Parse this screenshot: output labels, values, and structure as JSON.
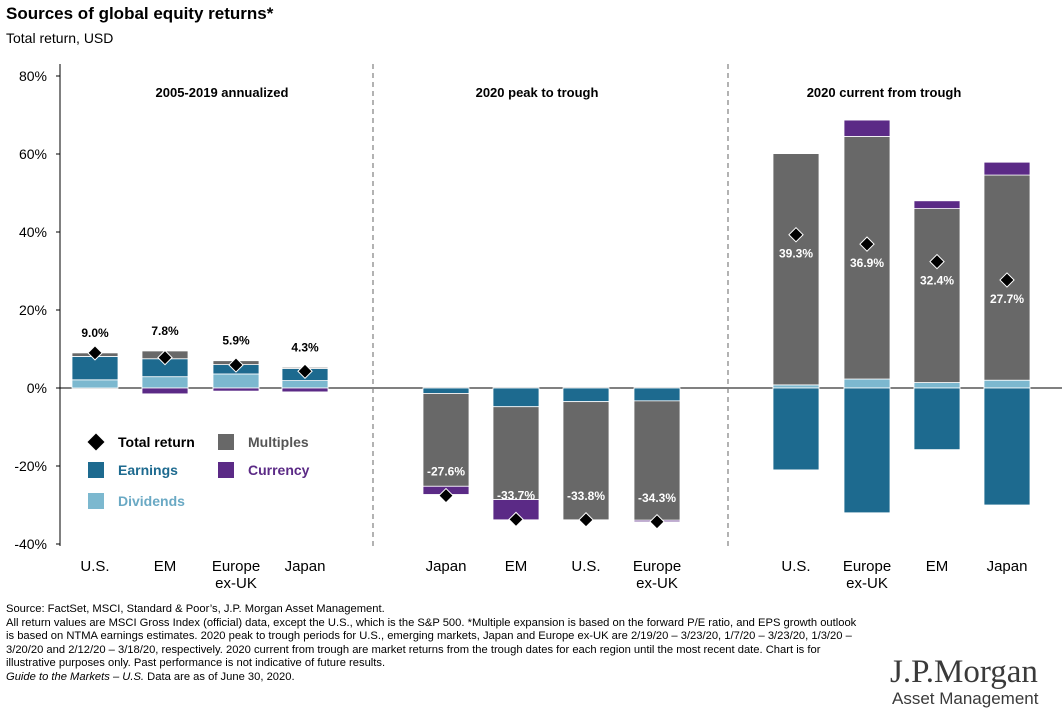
{
  "title": "Sources of global equity returns*",
  "subtitle": "Total return, USD",
  "colors": {
    "earnings": "#1d6a8f",
    "dividends": "#7cb8cf",
    "multiples": "#686868",
    "currency": "#5b2a86",
    "total_marker": "#000000",
    "divider": "#808080"
  },
  "chart_data": {
    "type": "bar",
    "stacked": true,
    "y_ticks": [
      "80%",
      "60%",
      "40%",
      "20%",
      "0%",
      "-20%",
      "-40%"
    ],
    "ylim": [
      -40,
      80
    ],
    "panels": [
      {
        "title": "2005-2019 annualized",
        "total_label_style": "above",
        "categories": [
          {
            "label": "U.S.",
            "total": 9.0,
            "total_label": "9.0%",
            "earnings": 6.0,
            "dividends": 2.1,
            "multiples": 0.9,
            "currency": 0.0
          },
          {
            "label": "EM",
            "total": 7.8,
            "total_label": "7.8%",
            "earnings": 4.6,
            "dividends": 2.9,
            "multiples": 2.0,
            "currency": -1.5
          },
          {
            "label": "Europe\nex-UK",
            "total": 5.9,
            "total_label": "5.9%",
            "earnings": 2.4,
            "dividends": 3.6,
            "multiples": 1.0,
            "currency": -0.8
          },
          {
            "label": "Japan",
            "total": 4.3,
            "total_label": "4.3%",
            "earnings": 3.1,
            "dividends": 1.9,
            "multiples": 0.3,
            "currency": -1.0
          }
        ]
      },
      {
        "title": "2020 peak to trough",
        "total_label_style": "inside",
        "categories": [
          {
            "label": "Japan",
            "total": -27.6,
            "total_label": "-27.6%",
            "earnings": -1.4,
            "dividends": 0.0,
            "multiples": -23.8,
            "currency": -2.1
          },
          {
            "label": "EM",
            "total": -33.7,
            "total_label": "-33.7%",
            "earnings": -4.8,
            "dividends": 0.0,
            "multiples": -23.8,
            "currency": -5.2
          },
          {
            "label": "U.S.",
            "total": -33.8,
            "total_label": "-33.8%",
            "earnings": -3.5,
            "dividends": 0.0,
            "multiples": -30.3,
            "currency": 0.0
          },
          {
            "label": "Europe\nex-UK",
            "total": -34.3,
            "total_label": "-34.3%",
            "earnings": -3.3,
            "dividends": 0.0,
            "multiples": -30.6,
            "currency": -0.4
          }
        ]
      },
      {
        "title": "2020 current from trough",
        "total_label_style": "inside",
        "categories": [
          {
            "label": "U.S.",
            "total": 39.3,
            "total_label": "39.3%",
            "earnings": -21.0,
            "dividends": 0.8,
            "multiples": 59.3,
            "currency": 0.0
          },
          {
            "label": "Europe\nex-UK",
            "total": 36.9,
            "total_label": "36.9%",
            "earnings": -32.0,
            "dividends": 2.3,
            "multiples": 62.2,
            "currency": 4.2
          },
          {
            "label": "EM",
            "total": 32.4,
            "total_label": "32.4%",
            "earnings": -15.8,
            "dividends": 1.4,
            "multiples": 44.6,
            "currency": 2.0
          },
          {
            "label": "Japan",
            "total": 27.7,
            "total_label": "27.7%",
            "earnings": -30.0,
            "dividends": 2.0,
            "multiples": 52.6,
            "currency": 3.3
          }
        ]
      }
    ],
    "legend": [
      {
        "key": "total",
        "label": "Total return"
      },
      {
        "key": "multiples",
        "label": "Multiples"
      },
      {
        "key": "earnings",
        "label": "Earnings"
      },
      {
        "key": "currency",
        "label": "Currency"
      },
      {
        "key": "dividends",
        "label": "Dividends"
      }
    ],
    "legend_position": "lower-left"
  },
  "footnote": {
    "source": "Source: FactSet, MSCI, Standard & Poor’s, J.P. Morgan Asset Management.",
    "body": "All return values are MSCI Gross Index (official) data, except the U.S., which is the S&P 500. *Multiple expansion is based on the forward P/E ratio, and EPS growth outlook is based on NTMA earnings estimates. 2020 peak to trough periods for U.S., emerging markets, Japan and Europe ex-UK are 2/19/20 – 3/23/20, 1/7/20 – 3/23/20, 1/3/20 – 3/20/20 and 2/12/20 – 3/18/20, respectively. 2020 current from trough are market returns from the trough dates for each region until the most recent date. Chart is for illustrative purposes only. Past performance is not indicative of future results.",
    "guide_italic": "Guide to the Markets – U.S.",
    "guide_rest": " Data are as of June 30, 2020."
  },
  "logo": {
    "main": "J.P.Morgan",
    "sub": "Asset Management"
  }
}
